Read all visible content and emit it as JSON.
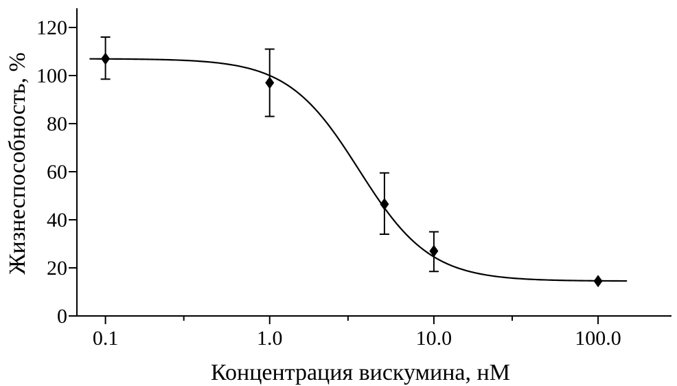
{
  "chart_data": {
    "type": "scatter",
    "xlabel": "Концентрация вискумина, нМ",
    "ylabel": "Жизнеспособность, %",
    "x_scale": "log",
    "xlim": [
      0.067,
      280
    ],
    "ylim": [
      0,
      128
    ],
    "x_ticks": [
      0.1,
      1,
      10,
      100
    ],
    "x_tick_labels": [
      "0.1",
      "1.0",
      "10.0",
      "100.0"
    ],
    "y_ticks": [
      0,
      20,
      40,
      60,
      80,
      100,
      120
    ],
    "y_tick_labels": [
      "0",
      "20",
      "40",
      "60",
      "80",
      "100",
      "120"
    ],
    "grid": false,
    "series": [
      {
        "x": [
          0.1,
          1.0,
          5.0,
          10.0,
          100.0
        ],
        "y": [
          107,
          97,
          46.5,
          27,
          14.5
        ],
        "y_err_upper": [
          116,
          111,
          59.5,
          35,
          14.5
        ],
        "y_err_lower": [
          98.5,
          83,
          34,
          18.5,
          14.5
        ],
        "marker": "diamond"
      }
    ],
    "fit_curve": {
      "model": "4-parameter logistic",
      "top": 107,
      "bottom": 14.5,
      "ec50": 3.5,
      "hill": 2.0,
      "x_range": [
        0.08,
        150
      ]
    }
  }
}
